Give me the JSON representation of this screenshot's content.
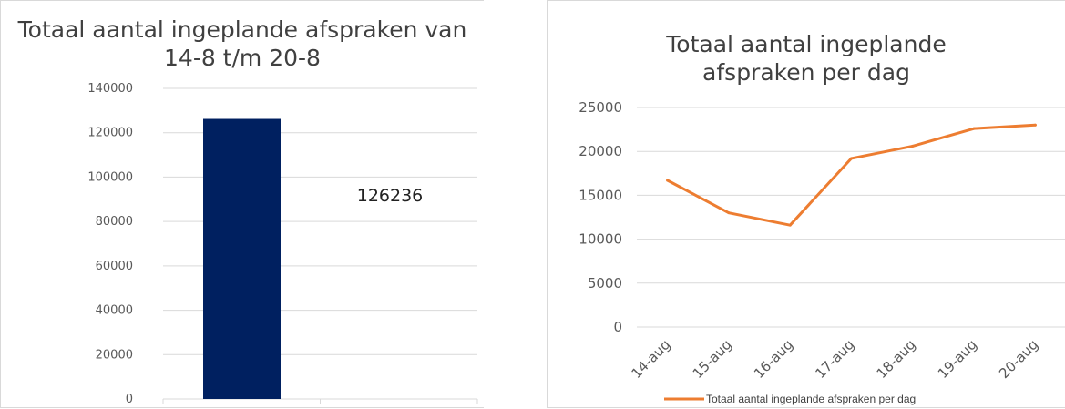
{
  "chart_data": [
    {
      "type": "bar",
      "title": "Totaal aantal ingeplande afspraken van 14-8 t/m 20-8",
      "categories": [
        ""
      ],
      "values": [
        126236
      ],
      "data_labels": [
        "126236"
      ],
      "ylim": [
        0,
        140000
      ],
      "yticks": [
        0,
        20000,
        40000,
        60000,
        80000,
        100000,
        120000,
        140000
      ],
      "grid": true,
      "colors": {
        "bar": "#002060",
        "grid": "#d9d9d9"
      }
    },
    {
      "type": "line",
      "title": "Totaal aantal ingeplande afspraken per dag",
      "categories": [
        "14-aug",
        "15-aug",
        "16-aug",
        "17-aug",
        "18-aug",
        "19-aug",
        "20-aug"
      ],
      "series": [
        {
          "name": "Totaal aantal ingeplande afspraken per dag",
          "values": [
            16700,
            13000,
            11600,
            19200,
            20600,
            22600,
            23000
          ]
        }
      ],
      "ylim": [
        0,
        25000
      ],
      "yticks": [
        0,
        5000,
        10000,
        15000,
        20000,
        25000
      ],
      "grid": true,
      "legend": "bottom",
      "colors": {
        "line": "#ed7d31",
        "grid": "#d9d9d9"
      }
    }
  ]
}
